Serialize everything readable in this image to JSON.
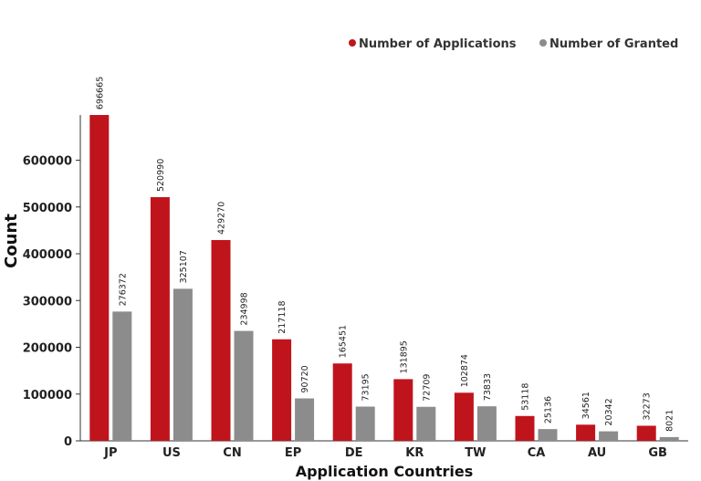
{
  "chart_data": {
    "type": "bar",
    "title": "",
    "xlabel": "Application Countries",
    "ylabel": "Count",
    "categories": [
      "JP",
      "US",
      "CN",
      "EP",
      "DE",
      "KR",
      "TW",
      "CA",
      "AU",
      "GB"
    ],
    "series": [
      {
        "name": "Number of Applications",
        "color": "#c0141c",
        "values": [
          696665,
          520990,
          429270,
          217118,
          165451,
          131895,
          102874,
          53118,
          34561,
          32273
        ]
      },
      {
        "name": "Number of Granted",
        "color": "#8c8c8c",
        "values": [
          276372,
          325107,
          234998,
          90720,
          73195,
          72709,
          73833,
          25136,
          20342,
          8021
        ]
      }
    ],
    "yticks": [
      0,
      100000,
      200000,
      300000,
      400000,
      500000,
      600000
    ],
    "ylim": [
      0,
      696665
    ],
    "grid": false,
    "legend_position": "top-right"
  }
}
